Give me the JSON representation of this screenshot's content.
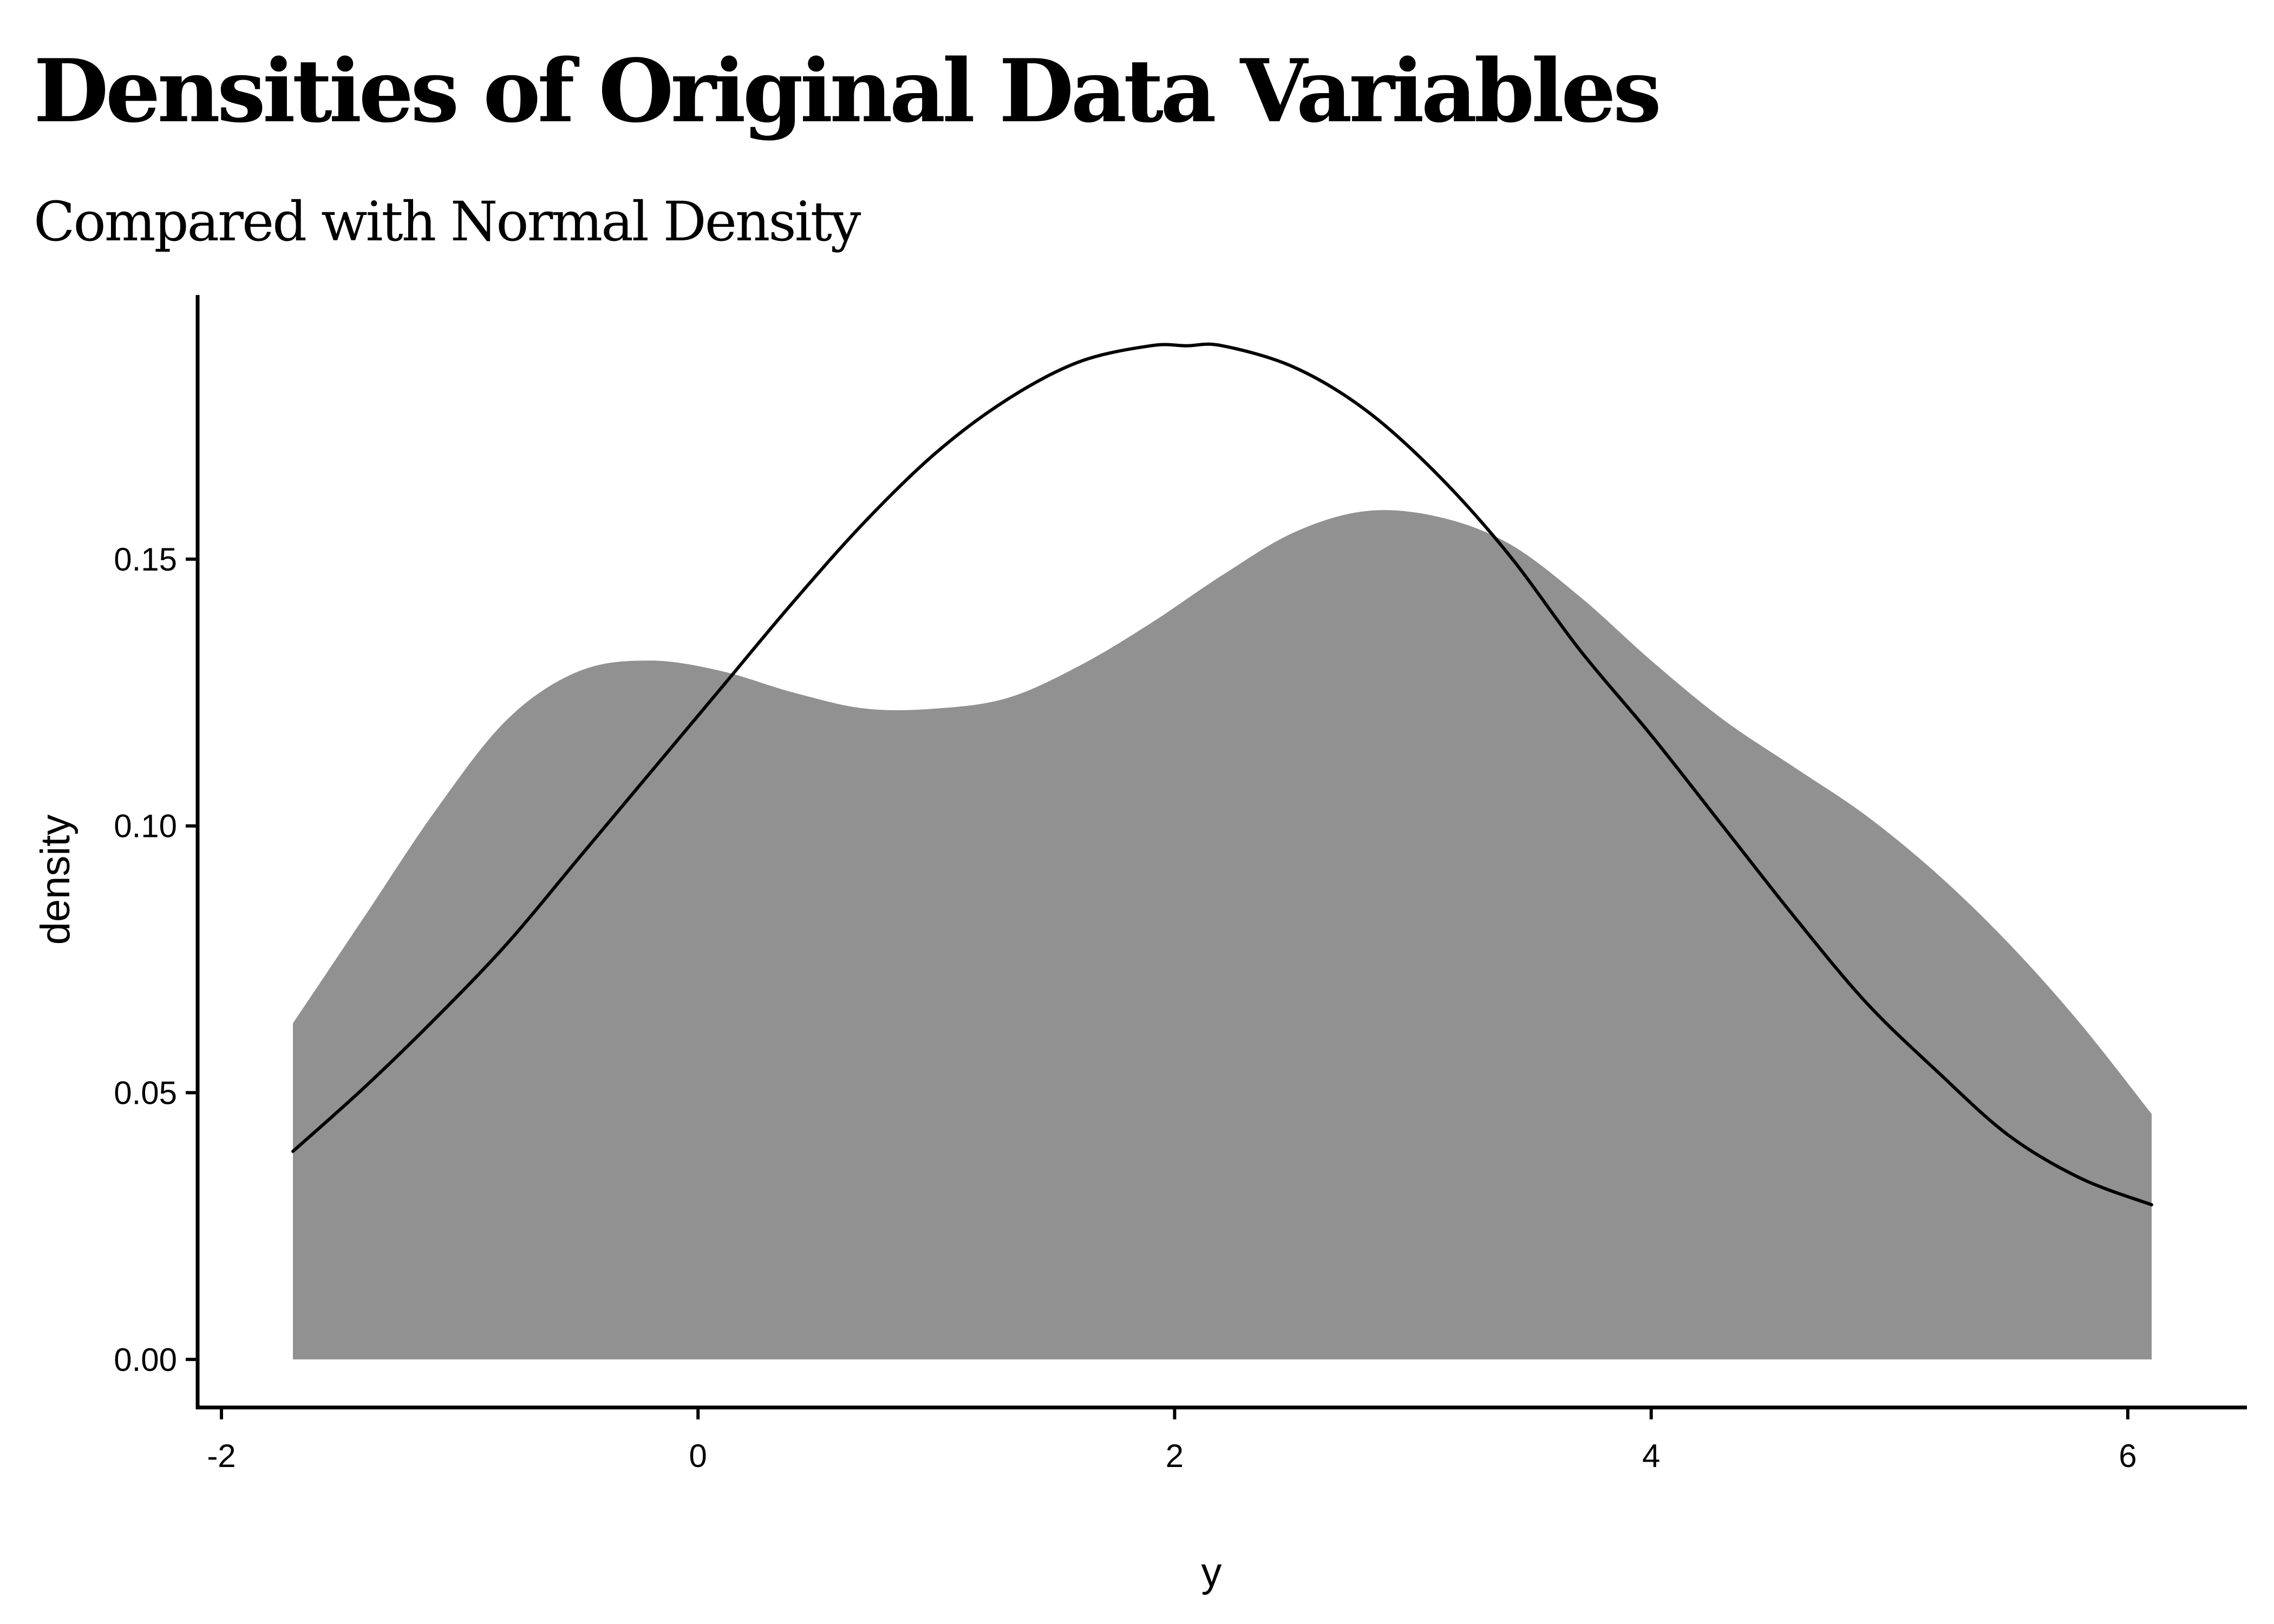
{
  "title": "Densities of Original Data Variables",
  "subtitle": "Compared with Normal Density",
  "colors": {
    "fill": "#919191",
    "line": "#000000",
    "axis": "#000000",
    "background": "#ffffff"
  },
  "chart_data": {
    "type": "area",
    "title": "Densities of Original Data Variables",
    "subtitle": "Compared with Normal Density",
    "xlabel": "y",
    "ylabel": "density",
    "xlim": [
      -2.1,
      6.5
    ],
    "ylim": [
      -0.009,
      0.199
    ],
    "x_ticks": [
      -2,
      0,
      2,
      4,
      6
    ],
    "x_tick_labels": [
      "-2",
      "0",
      "2",
      "4",
      "6"
    ],
    "y_ticks": [
      0,
      0.05,
      0.1,
      0.15
    ],
    "y_tick_labels": [
      "0.00",
      "0.05",
      "0.10",
      "0.15"
    ],
    "grid": false,
    "legend": "none",
    "series": [
      {
        "kind": "area",
        "x": [
          -1.7,
          -1.4,
          -1.1,
          -0.8,
          -0.5,
          -0.2,
          0.1,
          0.4,
          0.7,
          1.0,
          1.3,
          1.6,
          1.9,
          2.2,
          2.5,
          2.8,
          3.1,
          3.4,
          3.7,
          4.0,
          4.3,
          4.6,
          4.9,
          5.2,
          5.5,
          5.8,
          6.1
        ],
        "y": [
          0.063,
          0.083,
          0.103,
          0.12,
          0.129,
          0.131,
          0.129,
          0.125,
          0.122,
          0.122,
          0.124,
          0.13,
          0.138,
          0.147,
          0.155,
          0.159,
          0.158,
          0.153,
          0.143,
          0.131,
          0.12,
          0.111,
          0.102,
          0.091,
          0.078,
          0.063,
          0.046
        ]
      },
      {
        "kind": "line",
        "x": [
          -1.7,
          -1.4,
          -1.1,
          -0.8,
          -0.5,
          -0.2,
          0.1,
          0.4,
          0.7,
          1.0,
          1.3,
          1.6,
          1.9,
          2.05,
          2.2,
          2.5,
          2.8,
          3.1,
          3.4,
          3.7,
          4.0,
          4.3,
          4.6,
          4.9,
          5.2,
          5.5,
          5.8,
          6.1
        ],
        "y": [
          0.039,
          0.051,
          0.064,
          0.078,
          0.094,
          0.11,
          0.126,
          0.142,
          0.157,
          0.17,
          0.18,
          0.187,
          0.19,
          0.19,
          0.19,
          0.186,
          0.178,
          0.166,
          0.151,
          0.133,
          0.117,
          0.1,
          0.083,
          0.067,
          0.054,
          0.042,
          0.034,
          0.029
        ]
      }
    ]
  }
}
